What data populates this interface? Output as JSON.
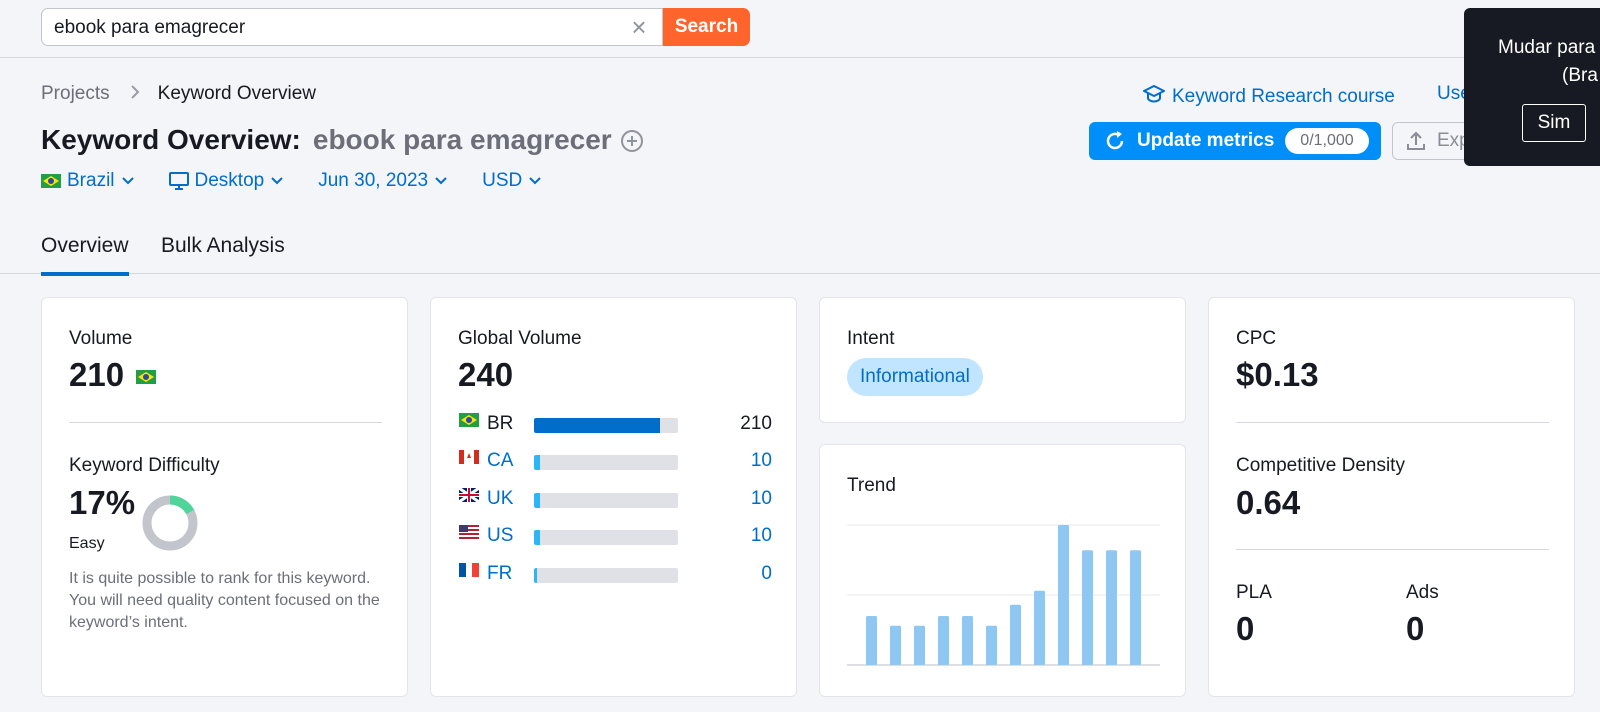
{
  "search": {
    "value": "ebook para emagrecer",
    "button_label": "Search"
  },
  "breadcrumb": {
    "items": [
      "Projects",
      "Keyword Overview"
    ]
  },
  "header": {
    "course_link": "Keyword Research course",
    "use_link": "Use",
    "title": "Keyword Overview:",
    "keyword": "ebook para emagrecer",
    "update_label": "Update metrics",
    "update_counter": "0/1,000",
    "export_label": "Exp"
  },
  "filters": {
    "country": "Brazil",
    "device": "Desktop",
    "date": "Jun 30, 2023",
    "currency": "USD"
  },
  "tabs": [
    {
      "label": "Overview"
    },
    {
      "label": "Bulk Analysis"
    }
  ],
  "volume": {
    "label": "Volume",
    "value": "210"
  },
  "keyword_difficulty": {
    "label": "Keyword Difficulty",
    "value": "17%",
    "percent": 17,
    "level": "Easy",
    "description": "It is quite possible to rank for this keyword. You will need quality content focused on the keyword’s intent."
  },
  "global_volume": {
    "label": "Global Volume",
    "value": "240",
    "rows": [
      {
        "code": "BR",
        "value": "210",
        "fraction": 0.875,
        "color": "#006dca",
        "link": false
      },
      {
        "code": "CA",
        "value": "10",
        "fraction": 0.04,
        "color": "#2bb7f7",
        "link": true
      },
      {
        "code": "UK",
        "value": "10",
        "fraction": 0.04,
        "color": "#2bb7f7",
        "link": true
      },
      {
        "code": "US",
        "value": "10",
        "fraction": 0.04,
        "color": "#2bb7f7",
        "link": true
      },
      {
        "code": "FR",
        "value": "0",
        "fraction": 0.02,
        "color": "#2bb7f7",
        "link": true
      }
    ]
  },
  "intent": {
    "label": "Intent",
    "badge": "Informational"
  },
  "trend": {
    "label": "Trend"
  },
  "chart_data": {
    "type": "bar",
    "title": "Trend",
    "categories": [
      "1",
      "2",
      "3",
      "4",
      "5",
      "6",
      "7",
      "8",
      "9",
      "10",
      "11",
      "12"
    ],
    "values": [
      35,
      28,
      28,
      35,
      35,
      28,
      43,
      53,
      100,
      82,
      82,
      82
    ],
    "ylim": [
      0,
      100
    ],
    "grid": true,
    "color": "#8ec8f2"
  },
  "cpc": {
    "label": "CPC",
    "value": "$0.13"
  },
  "competitive_density": {
    "label": "Competitive Density",
    "value": "0.64"
  },
  "pla": {
    "label": "PLA",
    "value": "0"
  },
  "ads": {
    "label": "Ads",
    "value": "0"
  },
  "popup": {
    "line1": "Mudar para",
    "line2": "(Bra",
    "button": "Sim"
  },
  "colors": {
    "accent": "#006dca",
    "primary_button": "#008ff8",
    "search_button": "#ff642d",
    "kd_easy": "#4fd49a"
  }
}
